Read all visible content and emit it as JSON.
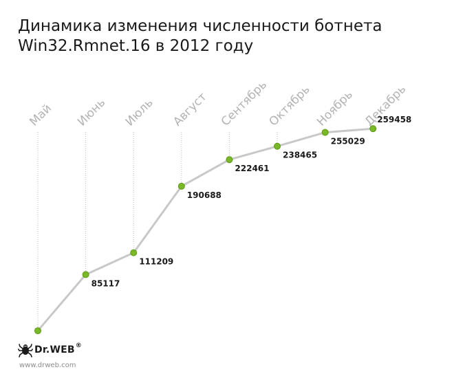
{
  "chart_data": {
    "type": "line",
    "title_lines": [
      "Динамика изменения численности ботнета",
      "Win32.Rmnet.16 в 2012 году"
    ],
    "categories": [
      "Май",
      "Июнь",
      "Июль",
      "Август",
      "Сентябрь",
      "Октябрь",
      "Ноябрь",
      "Декабрь"
    ],
    "values": [
      18000,
      85117,
      111209,
      190688,
      222461,
      238465,
      255029,
      259458
    ],
    "value_labels": [
      "",
      "85117",
      "111209",
      "190688",
      "222461",
      "238465",
      "255029",
      "259458"
    ],
    "ylim": [
      0,
      290000
    ],
    "grid": "dotted vertical",
    "colors": {
      "line": "#c8c8c8",
      "marker": "#7ab829",
      "marker_stroke": "#5c9a16",
      "guide": "#bdbdbd"
    }
  },
  "branding": {
    "logo_text": "Dr.WEB",
    "logo_mark": "®",
    "logo_icon": "spider-icon",
    "url": "www.drweb.com"
  }
}
